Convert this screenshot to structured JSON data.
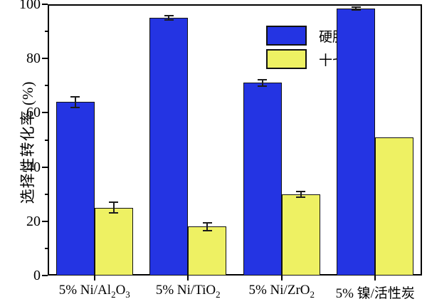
{
  "chart_data": {
    "type": "bar",
    "title": "",
    "xlabel": "",
    "ylabel": "选择性转化率 (%)",
    "ylim": [
      0,
      100
    ],
    "y_major_step": 20,
    "y_minor_step": 10,
    "y_ticks": [
      0,
      20,
      40,
      60,
      80,
      100
    ],
    "grid": false,
    "legend_position": "inside-top-center",
    "categories": [
      {
        "text": "5% Ni/Al2O3",
        "parts": [
          {
            "t": "5% Ni/Al"
          },
          {
            "t": "2",
            "sub": true
          },
          {
            "t": "O"
          },
          {
            "t": "3",
            "sub": true
          }
        ]
      },
      {
        "text": "5% Ni/TiO2",
        "parts": [
          {
            "t": "5% Ni/TiO"
          },
          {
            "t": "2",
            "sub": true
          }
        ]
      },
      {
        "text": "5% Ni/ZrO2",
        "parts": [
          {
            "t": "5% Ni/ZrO"
          },
          {
            "t": "2",
            "sub": true
          }
        ]
      },
      {
        "text": "5% 镍/活性炭",
        "parts": [
          {
            "t": "5% 镍/活性炭"
          }
        ]
      }
    ],
    "series": [
      {
        "name": "硬脂酸",
        "color": "#2434e3",
        "values": [
          64,
          95,
          71,
          98.5
        ],
        "errors": [
          2,
          0.7,
          1.3,
          0.5
        ]
      },
      {
        "name": "十七烷",
        "color": "#eef163",
        "values": [
          25,
          18,
          30,
          51
        ],
        "errors": [
          2,
          1.5,
          1,
          0
        ]
      }
    ]
  },
  "colors": {
    "frame": "#000000",
    "bar_border": "#111111",
    "error_bar": "#1c1c1c",
    "background": "#ffffff",
    "text": "#000000"
  }
}
